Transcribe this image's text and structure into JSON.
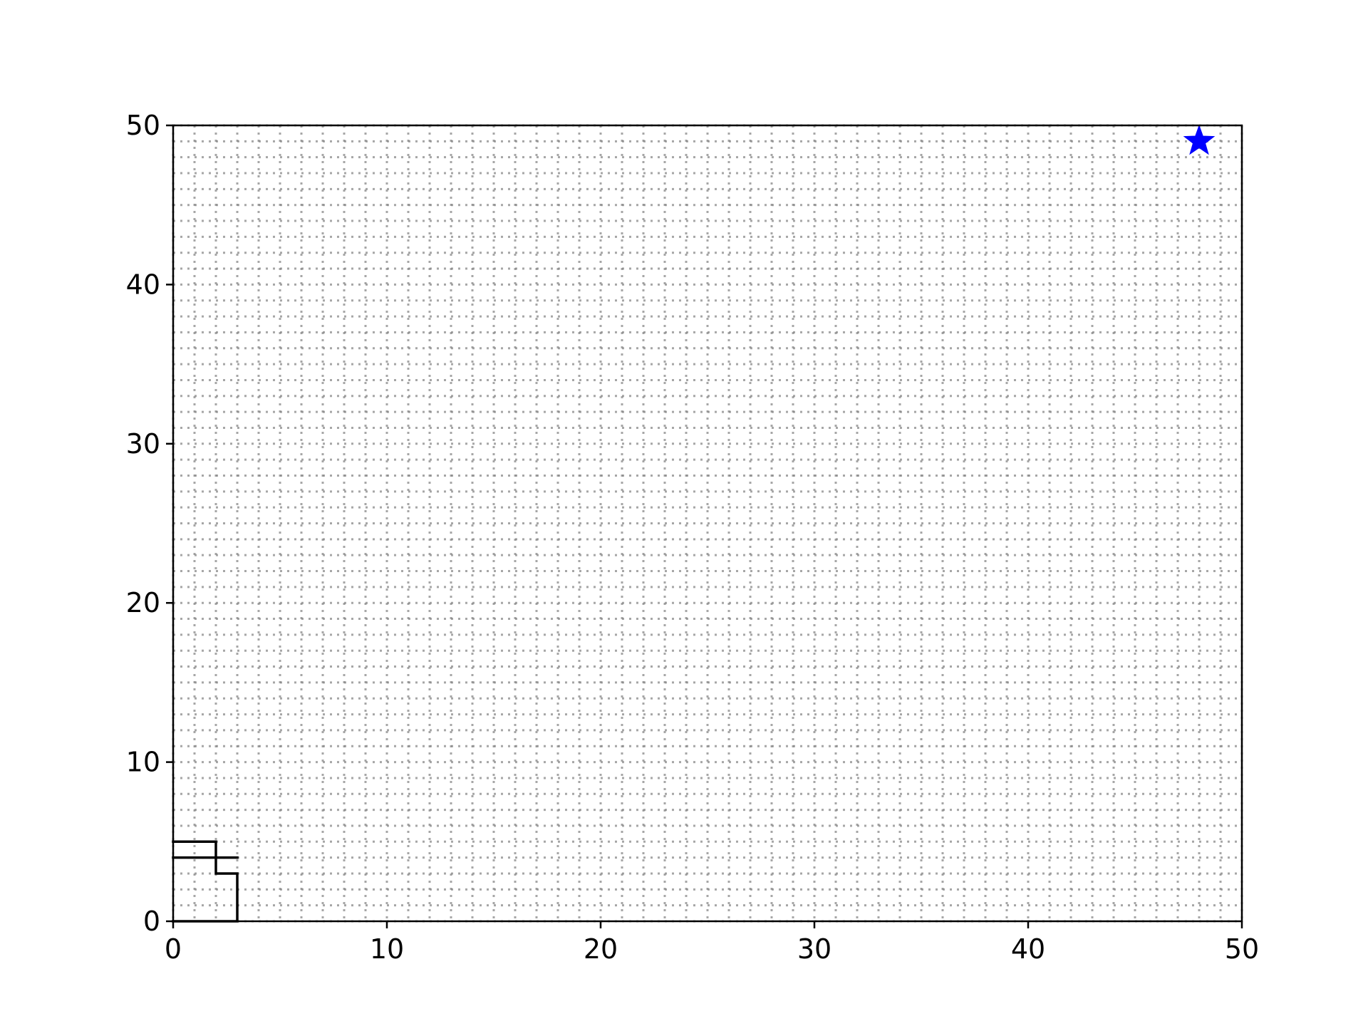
{
  "chart_data": {
    "type": "line",
    "title": "",
    "xlabel": "",
    "ylabel": "",
    "xlim": [
      0,
      50
    ],
    "ylim": [
      0,
      50
    ],
    "x_ticks": [
      "0",
      "10",
      "20",
      "30",
      "40",
      "50"
    ],
    "y_ticks": [
      "0",
      "10",
      "20",
      "30",
      "40",
      "50"
    ],
    "grid": true,
    "grid_style": "dotted",
    "grid_step": 1,
    "legend": "none",
    "series": [
      {
        "color": "#000000",
        "x": [
          0,
          2,
          2,
          3,
          3,
          0
        ],
        "y": [
          5,
          5,
          3,
          3,
          0,
          0
        ]
      },
      {
        "color": "#000000",
        "x": [
          0,
          3
        ],
        "y": [
          4,
          4
        ]
      }
    ],
    "markers": [
      {
        "shape": "star",
        "color": "#0000ff",
        "x": 48,
        "y": 49
      }
    ]
  }
}
